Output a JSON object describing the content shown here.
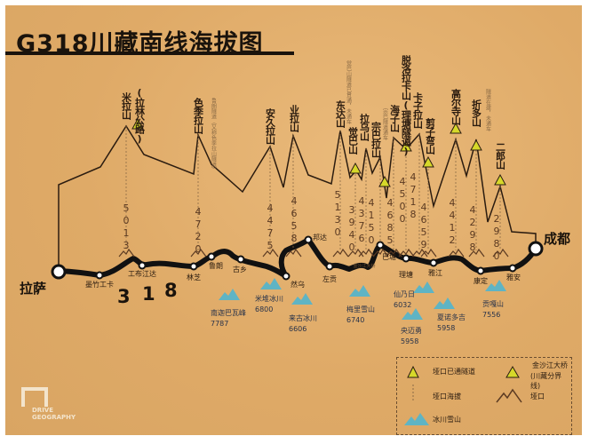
{
  "title": "G318川藏南线海拔图",
  "colors": {
    "background": "#dfaa67",
    "route": "#111111",
    "profile": "#2b1c10",
    "glacier": "#5fb4c4",
    "tunnel": "#d6d82a"
  },
  "route_number": [
    "3",
    "1",
    "8"
  ],
  "start_city": "拉萨",
  "end_city": "成都",
  "passes": [
    {
      "name": "米拉山",
      "elevation": "5013",
      "tunnel": false,
      "note": "(拉林公路)"
    },
    {
      "name": "色季拉山",
      "elevation": "4720",
      "tunnel": false,
      "note": "鲁朗隧道（又称色季拉山隧道）"
    },
    {
      "name": "安久拉山",
      "elevation": "4475",
      "tunnel": false
    },
    {
      "name": "业拉山",
      "elevation": "4658",
      "tunnel": false
    },
    {
      "name": "东达山",
      "elevation": "5130",
      "tunnel": false,
      "note": "觉巴山隧道已贯通，未通车"
    },
    {
      "name": "觉巴山",
      "elevation": "3940",
      "tunnel": true
    },
    {
      "name": "拉乌山",
      "elevation": "4376",
      "tunnel": false
    },
    {
      "name": "宗巴拉山",
      "elevation": "4150",
      "tunnel": true,
      "note": "宗巴隧道通车"
    },
    {
      "name": "海子山",
      "elevation": "4685",
      "tunnel": false
    },
    {
      "name": "脱洛拉卡山(理塘隧道)",
      "elevation": "4500",
      "tunnel": true
    },
    {
      "name": "卡子拉山",
      "elevation": "4718",
      "tunnel": false
    },
    {
      "name": "剪子弯山",
      "elevation": "4659",
      "tunnel": true
    },
    {
      "name": "高尔寺山",
      "elevation": "4412",
      "tunnel": true
    },
    {
      "name": "折多山",
      "elevation": "4298",
      "tunnel": true,
      "note": "隧道在建，未通车"
    },
    {
      "name": "二郎山",
      "elevation": "2980",
      "tunnel": true
    }
  ],
  "towns": [
    "墨竹工卡",
    "工布江达",
    "林芝",
    "鲁朗",
    "古乡",
    "然乌",
    "邦达",
    "左贡",
    "巴塘",
    "理塘",
    "雅江",
    "康定",
    "雅安"
  ],
  "bridge_label": "金沙江大桥",
  "glaciers": [
    {
      "name": "南迦巴瓦峰",
      "elevation": "7787"
    },
    {
      "name": "米堆冰川",
      "elevation": "6800"
    },
    {
      "name": "来古冰川",
      "elevation": "6606"
    },
    {
      "name": "梅里雪山",
      "elevation": "6740"
    },
    {
      "name": "仙乃日",
      "elevation": "6032"
    },
    {
      "name": "央迈勇",
      "elevation": "5958"
    },
    {
      "name": "夏诺多吉",
      "elevation": "5958"
    },
    {
      "name": "贡嘎山",
      "elevation": "7556"
    }
  ],
  "legend": {
    "tunnel": "垭口已通隧道",
    "bridge": "金沙江大桥",
    "bridge_sub": "(川藏分界线)",
    "elevation": "垭口海拔",
    "pass": "垭口",
    "glacier": "冰川雪山"
  },
  "logo": {
    "line1": "DRIVE",
    "line2": "GEOGRAPHY"
  }
}
